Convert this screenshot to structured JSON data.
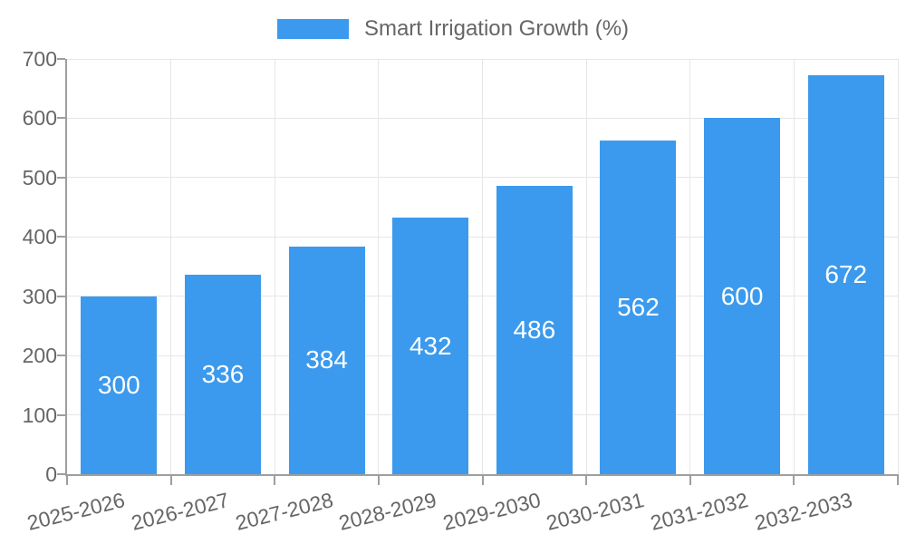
{
  "legend": {
    "label": "Smart Irrigation Growth (%)",
    "swatch_color": "#3B9AED"
  },
  "chart_data": {
    "type": "bar",
    "title": "Smart Irrigation Growth (%)",
    "categories": [
      "2025-2026",
      "2026-2027",
      "2027-2028",
      "2028-2029",
      "2029-2030",
      "2030-2031",
      "2031-2032",
      "2032-2033"
    ],
    "values": [
      300,
      336,
      384,
      432,
      486,
      562,
      600,
      672
    ],
    "value_labels": [
      "300",
      "336",
      "384",
      "432",
      "486",
      "562",
      "600",
      "672"
    ],
    "bar_color": "#3B9AED",
    "value_label_color": "#FFFFFF",
    "xlabel": "",
    "ylabel": "",
    "ylim": [
      0,
      700
    ],
    "yticks": [
      0,
      100,
      200,
      300,
      400,
      500,
      600,
      700
    ],
    "grid": true,
    "legend_position": "top",
    "x_tick_rotation_deg": -14,
    "colors": {
      "tick_text": "#666666",
      "axis_line": "#9E9E9E",
      "grid_line": "#E6E6E6",
      "background": "#FFFFFF"
    }
  }
}
